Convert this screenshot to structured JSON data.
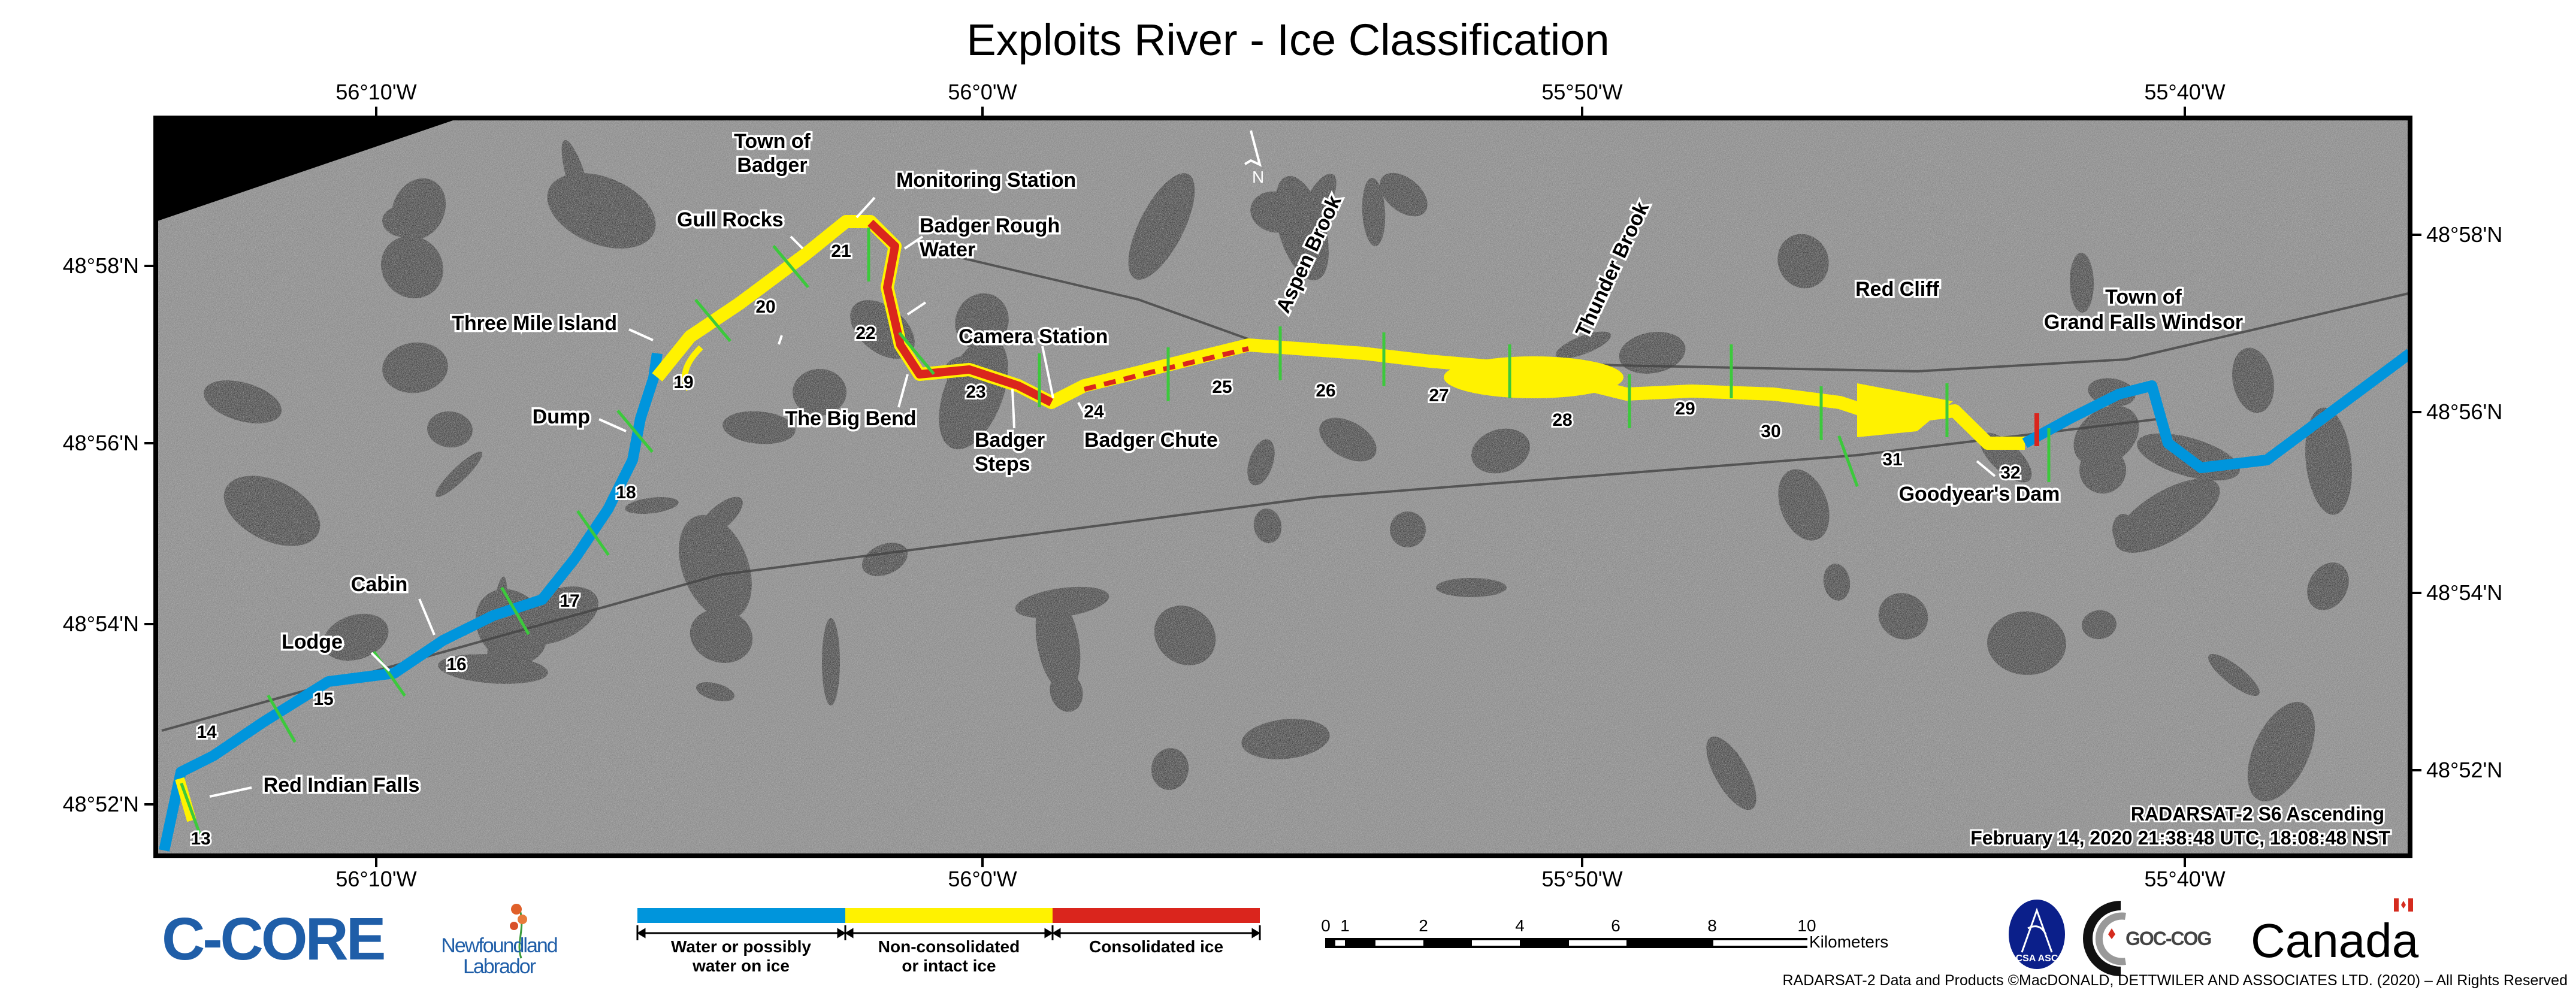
{
  "title": "Exploits River - Ice Classification",
  "longitude_labels": [
    "56°10'W",
    "56°0'W",
    "55°50'W",
    "55°40'W"
  ],
  "latitude_labels": [
    "48°58'N",
    "48°56'N",
    "48°54'N",
    "48°52'N"
  ],
  "place_labels": {
    "town_of_badger": [
      "Town of",
      "Badger"
    ],
    "monitoring_station": "Monitoring Station",
    "gull_rocks": "Gull Rocks",
    "badger_rough_water": [
      "Badger Rough",
      "Water"
    ],
    "three_mile_island": "Three Mile Island",
    "dump": "Dump",
    "camera_station": "Camera Station",
    "the_big_bend": "The Big Bend",
    "badger_steps": [
      "Badger",
      "Steps"
    ],
    "badger_chute": "Badger Chute",
    "aspen_brook": "Aspen Brook",
    "thunder_brook": "Thunder Brook",
    "red_cliff": "Red Cliff",
    "grand_falls_windsor": [
      "Town of",
      "Grand Falls Windsor"
    ],
    "goodyears_dam": "Goodyear's Dam",
    "cabin": "Cabin",
    "lodge": "Lodge",
    "red_indian_falls": "Red Indian Falls"
  },
  "section_numbers": [
    "13",
    "14",
    "15",
    "16",
    "17",
    "18",
    "19",
    "20",
    "21",
    "22",
    "23",
    "24",
    "25",
    "26",
    "27",
    "28",
    "29",
    "30",
    "31",
    "32"
  ],
  "north_arrow": "N",
  "acquisition": {
    "sensor": "RADARSAT-2 S6  Ascending",
    "datetime": "February 14, 2020 21:38:48 UTC, 18:08:48 NST"
  },
  "legend": {
    "items": [
      {
        "lines": [
          "Water or possibly",
          "water on ice"
        ],
        "color": "#0095dc"
      },
      {
        "lines": [
          "Non-consolidated",
          "or intact ice"
        ],
        "color": "#fff200"
      },
      {
        "lines": [
          "Consolidated ice"
        ],
        "color": "#da251d"
      }
    ]
  },
  "scale_bar": {
    "ticks": [
      "0",
      "1",
      "2",
      "4",
      "6",
      "8",
      "10"
    ],
    "unit": "Kilometers"
  },
  "logos": {
    "ccore": "C-CORE",
    "nl": [
      "Newfoundland",
      "Labrador"
    ],
    "csa": "CSA ASC",
    "goc": "GOC-COG",
    "canada": "Canada"
  },
  "copyright": "RADARSAT-2 Data and Products ©MacDONALD, DETTWILER AND ASSOCIATES LTD. (2020) – All Rights Reserved",
  "colors": {
    "water": "#0095dc",
    "non_consolidated": "#fff200",
    "consolidated": "#da251d",
    "section_line": "#3cc93c"
  }
}
